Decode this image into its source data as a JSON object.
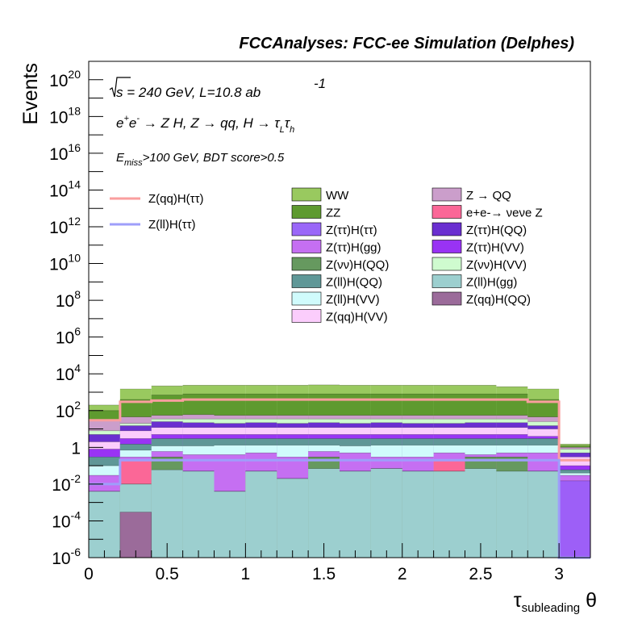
{
  "chart_data": {
    "type": "bar",
    "stacked": true,
    "title": "FCCAnalyses: FCC-ee Simulation (Delphes)",
    "annotations": [
      "√s = 240 GeV, L=10.8 ab^-1",
      "e+e- → Z H, Z → qq, H → τLτh",
      "E_miss>100 GeV, BDT score>0.5"
    ],
    "xlabel": "τ_subleading θ",
    "ylabel": "Events",
    "x_scale": "linear",
    "y_scale": "log",
    "xlim": [
      0,
      3.2
    ],
    "ylim": [
      1e-06,
      1e+21
    ],
    "x_ticks": [
      "0",
      "0.5",
      "1",
      "1.5",
      "2",
      "2.5",
      "3"
    ],
    "y_ticks": [
      {
        "base": "10",
        "exp": "-6",
        "plain": "",
        "value": 1e-06
      },
      {
        "base": "10",
        "exp": "-4",
        "plain": "",
        "value": 0.0001
      },
      {
        "base": "10",
        "exp": "-2",
        "plain": "",
        "value": 0.01
      },
      {
        "base": "",
        "exp": "",
        "plain": "1",
        "value": 1
      },
      {
        "base": "10",
        "exp": "2",
        "plain": "",
        "value": 100.0
      },
      {
        "base": "10",
        "exp": "4",
        "plain": "",
        "value": 10000.0
      },
      {
        "base": "10",
        "exp": "6",
        "plain": "",
        "value": 1000000.0
      },
      {
        "base": "10",
        "exp": "8",
        "plain": "",
        "value": 100000000.0
      },
      {
        "base": "10",
        "exp": "10",
        "plain": "",
        "value": 10000000000.0
      },
      {
        "base": "10",
        "exp": "12",
        "plain": "",
        "value": 1000000000000.0
      },
      {
        "base": "10",
        "exp": "14",
        "plain": "",
        "value": 100000000000000.0
      },
      {
        "base": "10",
        "exp": "16",
        "plain": "",
        "value": 1e+16
      },
      {
        "base": "10",
        "exp": "18",
        "plain": "",
        "value": 1e+18
      },
      {
        "base": "10",
        "exp": "20",
        "plain": "",
        "value": 1e+20
      }
    ],
    "bin_edges": [
      0,
      0.2,
      0.4,
      0.6,
      0.8,
      1.0,
      1.2,
      1.4,
      1.6,
      1.8,
      2.0,
      2.2,
      2.4,
      2.6,
      2.8,
      3.0,
      3.2
    ],
    "stack_levels": {
      "Z(ll)H(gg)": [
        0.004,
        0.01,
        0.06,
        0.05,
        0.004,
        0.05,
        0.02,
        0.07,
        0.05,
        0.07,
        0.05,
        0.05,
        0.07,
        0.05,
        0.05,
        0.001
      ],
      "Z(vv)H(QQ)": [
        0.004,
        0.01,
        0.3,
        0.05,
        0.004,
        0.05,
        0.02,
        0.3,
        0.05,
        0.07,
        0.05,
        0.05,
        0.3,
        0.3,
        0.05,
        0.001
      ],
      "ee->vvZ": [
        0.004,
        0.2,
        0.3,
        0.05,
        0.004,
        0.05,
        0.02,
        0.3,
        0.05,
        0.07,
        0.05,
        0.2,
        0.3,
        0.3,
        0.05,
        0.001
      ],
      "Z(tt)H(gg)": [
        0.03,
        0.3,
        0.6,
        0.4,
        0.4,
        0.5,
        0.3,
        0.6,
        0.5,
        0.3,
        0.3,
        0.5,
        0.4,
        0.5,
        0.5,
        0.03
      ],
      "Z(ll)H(VV)": [
        0.1,
        0.7,
        1.2,
        1.2,
        1.3,
        1.3,
        1.3,
        1.3,
        1.2,
        1.3,
        1.3,
        1.3,
        1.3,
        1.3,
        1.3,
        0.04
      ],
      "Z(ll)H(QQ)": [
        0.3,
        1.5,
        3,
        3,
        3,
        3,
        3,
        3,
        3,
        3,
        3,
        3,
        3,
        3,
        3,
        0.06
      ],
      "Z(tt)H(VV)": [
        0.8,
        3,
        5,
        5,
        5,
        5,
        5,
        5,
        5,
        5,
        5,
        5,
        5,
        5,
        4,
        0.1
      ],
      "Z(qq)H(VV)": [
        2,
        8,
        12,
        12,
        12,
        12,
        12,
        12,
        12,
        12,
        12,
        12,
        12,
        12,
        10,
        0.3
      ],
      "Z(tt)H(QQ)": [
        5,
        15,
        25,
        22,
        20,
        22,
        20,
        22,
        20,
        22,
        20,
        20,
        22,
        22,
        15,
        0.5
      ],
      "Z(vv)H(VV)": [
        8,
        20,
        35,
        35,
        35,
        35,
        35,
        35,
        35,
        35,
        35,
        35,
        35,
        35,
        25,
        0.8
      ],
      "Z->QQ": [
        30,
        45,
        55,
        60,
        55,
        55,
        55,
        55,
        55,
        55,
        55,
        55,
        55,
        55,
        45,
        1.0
      ],
      "ZZ": [
        100,
        400,
        700,
        800,
        800,
        800,
        800,
        800,
        800,
        800,
        800,
        800,
        800,
        800,
        400,
        1.2
      ],
      "WW": [
        200,
        1500,
        2200,
        2400,
        2400,
        2400,
        2400,
        2500,
        2400,
        2400,
        2400,
        2400,
        2400,
        2000,
        1500,
        1.5
      ]
    },
    "signal_lines": [
      {
        "name": "Z(qq)H(ττ)",
        "color": "#fa9e9e",
        "values": [
          30,
          300,
          350,
          400,
          400,
          400,
          400,
          400,
          400,
          400,
          400,
          400,
          400,
          400,
          300,
          0.2
        ]
      },
      {
        "name": "Z(ll)H(ττ)",
        "color": "#9e9efa",
        "values": [
          0.01,
          0.2,
          0.2,
          0.2,
          0.2,
          0.2,
          0.2,
          0.2,
          0.2,
          0.2,
          0.2,
          0.2,
          0.2,
          0.2,
          0.2,
          1e-06
        ]
      }
    ],
    "stack_order_bottom_to_top": [
      "Z(ll)H(gg)",
      "Z(vv)H(QQ)",
      "ee->vvZ",
      "Z(tt)H(gg)",
      "Z(ll)H(VV)",
      "Z(ll)H(QQ)",
      "Z(tt)H(VV)",
      "Z(qq)H(VV)",
      "Z(tt)H(QQ)",
      "Z(vv)H(VV)",
      "Z->QQ",
      "ZZ",
      "WW"
    ],
    "extra_series": [
      {
        "name": "Z(qq)H(QQ)",
        "color": "#9b6b9a",
        "values": [
          1e-06,
          0.0003,
          1e-06,
          1e-06,
          1e-06,
          1e-06,
          1e-06,
          1e-06,
          1e-06,
          1e-06,
          1e-06,
          1e-06,
          1e-06,
          1e-06,
          1e-06,
          1e-06
        ]
      },
      {
        "name": "Z(ττ)H(VV) tail",
        "color": "#9d5ff7",
        "values": [
          1e-06,
          1e-06,
          1e-06,
          1e-06,
          1e-06,
          1e-06,
          1e-06,
          1e-06,
          1e-06,
          1e-06,
          1e-06,
          1e-06,
          1e-06,
          1e-06,
          1e-06,
          0.015
        ]
      }
    ],
    "legend": {
      "placement": "top",
      "signal_entries": [
        {
          "label": "Z(qq)H(ττ)",
          "color": "#fa9e9e"
        },
        {
          "label": "Z(ll)H(ττ)",
          "color": "#9e9efa"
        }
      ],
      "left_column": [
        {
          "label": "WW",
          "color": "#99c95f"
        },
        {
          "label": "ZZ",
          "color": "#5e9a2f"
        },
        {
          "label": "Z(ττ)H(ττ)",
          "color": "#9a67f8"
        },
        {
          "label": "Z(ττ)H(gg)",
          "color": "#c56ff2"
        },
        {
          "label": "Z(νν)H(QQ)",
          "color": "#66995f"
        },
        {
          "label": "Z(ll)H(QQ)",
          "color": "#5f9797"
        },
        {
          "label": "Z(ll)H(VV)",
          "color": "#d0fbfc"
        },
        {
          "label": "Z(qq)H(VV)",
          "color": "#fbcdfc"
        }
      ],
      "right_column": [
        {
          "label": "Z → QQ",
          "color": "#cb9ecb"
        },
        {
          "label": "e+e-→ νeνe Z",
          "color": "#fb6797"
        },
        {
          "label": "Z(ττ)H(QQ)",
          "color": "#6a2fd0"
        },
        {
          "label": "Z(ττ)H(VV)",
          "color": "#9933f4"
        },
        {
          "label": "Z(νν)H(VV)",
          "color": "#cffbcf"
        },
        {
          "label": "Z(ll)H(gg)",
          "color": "#9ccfcf"
        },
        {
          "label": "Z(qq)H(QQ)",
          "color": "#9b6b9a"
        }
      ]
    },
    "colors": {
      "Z(ll)H(gg)": "#9ccfcf",
      "Z(vv)H(QQ)": "#66995f",
      "ee->vvZ": "#fb6797",
      "Z(tt)H(gg)": "#c56ff2",
      "Z(ll)H(VV)": "#d0fbfc",
      "Z(ll)H(QQ)": "#5f9797",
      "Z(tt)H(VV)": "#9933f4",
      "Z(qq)H(VV)": "#fbcdfc",
      "Z(tt)H(QQ)": "#6a2fd0",
      "Z(vv)H(VV)": "#cffbcf",
      "Z->QQ": "#cb9ecb",
      "ZZ": "#5e9a2f",
      "WW": "#99c95f"
    }
  }
}
